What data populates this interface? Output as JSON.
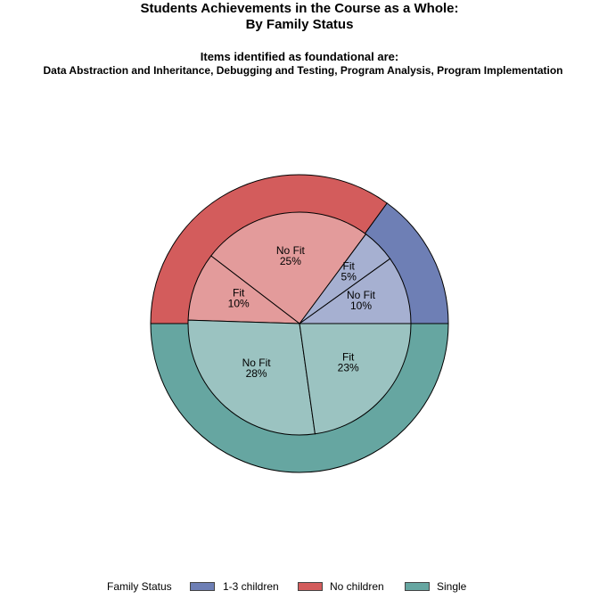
{
  "chart_data": {
    "type": "pie",
    "title": "Students Achievements in the Course as a Whole:",
    "title2": "By Family Status",
    "subtitle": "Items identified as foundational are:",
    "subtitle2": "Data Abstraction and Inheritance, Debugging and Testing, Program Analysis, Program Implementation",
    "outer_ring": [
      {
        "name": "1-3 children",
        "value": 15,
        "color": "#6e7fb5"
      },
      {
        "name": "No children",
        "value": 35,
        "color": "#d35c5c"
      },
      {
        "name": "Single",
        "value": 50,
        "color": "#66a6a1"
      }
    ],
    "inner_pie": [
      {
        "group": "1-3 children",
        "label": "No Fit",
        "value": 10,
        "pct_label": "10%",
        "color": "#a6b0d1"
      },
      {
        "group": "1-3 children",
        "label": "Fit",
        "value": 5,
        "pct_label": "5%",
        "color": "#a6b0d1"
      },
      {
        "group": "No children",
        "label": "No Fit",
        "value": 25,
        "pct_label": "25%",
        "color": "#e39b9b"
      },
      {
        "group": "No children",
        "label": "Fit",
        "value": 10,
        "pct_label": "10%",
        "color": "#e39b9b"
      },
      {
        "group": "Single",
        "label": "No Fit",
        "value": 28,
        "pct_label": "28%",
        "color": "#9bc3c1"
      },
      {
        "group": "Single",
        "label": "Fit",
        "value": 23,
        "pct_label": "23%",
        "color": "#9bc3c1"
      }
    ],
    "legend": {
      "title": "Family Status",
      "position": "bottom",
      "entries": [
        {
          "label": "1-3 children",
          "color": "#6e7fb5"
        },
        {
          "label": "No children",
          "color": "#d35c5c"
        },
        {
          "label": "Single",
          "color": "#66a6a1"
        }
      ]
    }
  }
}
